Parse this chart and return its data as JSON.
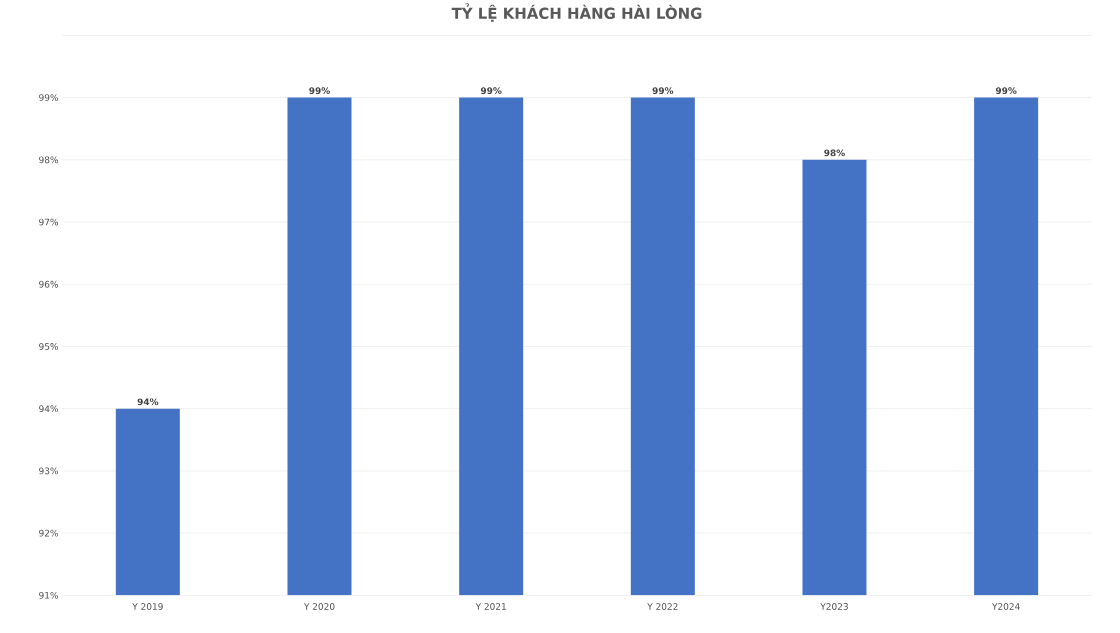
{
  "chart_data": {
    "type": "bar",
    "title": "TỶ LỆ KHÁCH HÀNG HÀI LÒNG",
    "categories": [
      "Y 2019",
      "Y 2020",
      "Y 2021",
      "Y 2022",
      "Y2023",
      "Y2024"
    ],
    "values": [
      94,
      99,
      99,
      99,
      98,
      99
    ],
    "value_labels": [
      "94%",
      "99%",
      "99%",
      "99%",
      "98%",
      "99%"
    ],
    "color": "#4472c4",
    "ylim": [
      91,
      100
    ],
    "yticks": [
      {
        "value": 91,
        "label": "91%"
      },
      {
        "value": 92,
        "label": "92%"
      },
      {
        "value": 93,
        "label": "93%"
      },
      {
        "value": 94,
        "label": "94%"
      },
      {
        "value": 95,
        "label": "95%"
      },
      {
        "value": 96,
        "label": "96%"
      },
      {
        "value": 97,
        "label": "97%"
      },
      {
        "value": 98,
        "label": "98%"
      },
      {
        "value": 99,
        "label": "99%"
      },
      {
        "value": 100,
        "label": null
      }
    ],
    "grid": "y"
  }
}
